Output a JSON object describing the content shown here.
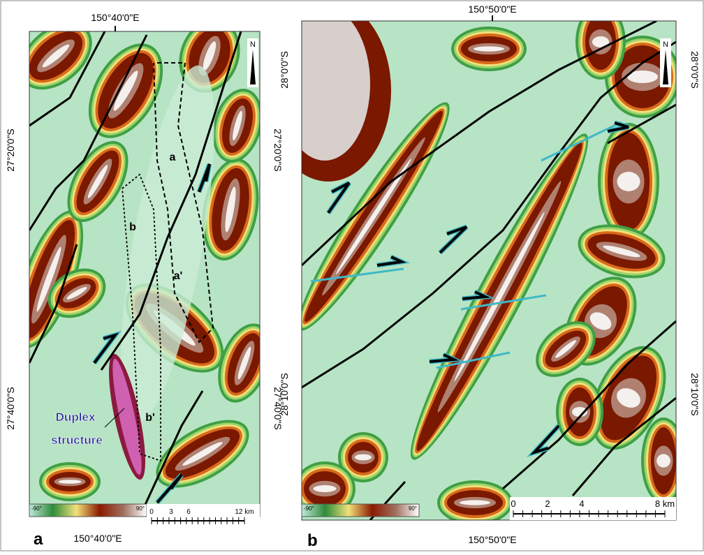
{
  "panels": [
    {
      "label": "a",
      "top_lon": "150°40'0\"E",
      "bottom_lon": "150°40'0\"E",
      "left_lats": [
        "27°20'0\"S",
        "27°40'0\"S"
      ],
      "right_lats": [
        "27°20'0\"S",
        "27°40'0\"S"
      ],
      "features": [
        "a",
        "b",
        "a'",
        "b'"
      ],
      "annotation": [
        "Duplex",
        "structure"
      ],
      "north": "N",
      "legend": [
        "-90°",
        "90°"
      ],
      "scale": [
        "0",
        "3",
        "6",
        "12 km"
      ]
    },
    {
      "label": "b",
      "top_lon": "150°50'0\"E",
      "bottom_lon": "150°50'0\"E",
      "left_lats": [
        "28°0'0\"S",
        "28°10'0\"S"
      ],
      "right_lats": [
        "28°0'0\"S",
        "28°10'0\"S"
      ],
      "north": "N",
      "legend": [
        "-90°",
        "90°"
      ],
      "scale": [
        "0",
        "2",
        "4",
        "8 km"
      ]
    }
  ]
}
